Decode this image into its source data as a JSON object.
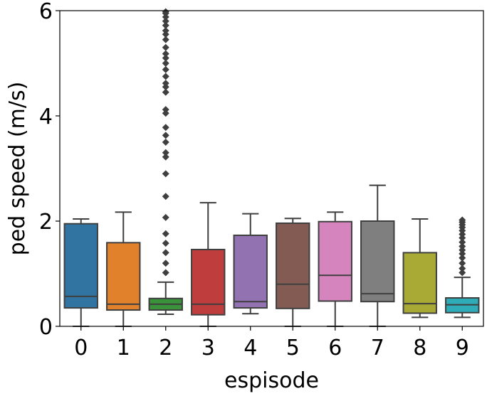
{
  "chart_data": {
    "type": "box",
    "title": "",
    "xlabel": "espisode",
    "ylabel": "ped speed (m/s)",
    "ylim": [
      0,
      6
    ],
    "yticks": [
      0,
      2,
      4,
      6
    ],
    "grid": false,
    "categories": [
      "0",
      "1",
      "2",
      "3",
      "4",
      "5",
      "6",
      "7",
      "8",
      "9"
    ],
    "boxes": [
      {
        "category": "0",
        "color": "#3274a1",
        "whisker_low": 0.0,
        "q1": 0.35,
        "median": 0.57,
        "q3": 1.95,
        "whisker_high": 2.04,
        "outliers": []
      },
      {
        "category": "1",
        "color": "#e1812c",
        "whisker_low": 0.0,
        "q1": 0.31,
        "median": 0.42,
        "q3": 1.59,
        "whisker_high": 2.17,
        "outliers": []
      },
      {
        "category": "2",
        "color": "#3a923a",
        "whisker_low": 0.23,
        "q1": 0.31,
        "median": 0.42,
        "q3": 0.53,
        "whisker_high": 0.84,
        "outliers": [
          1.02,
          1.2,
          1.4,
          1.58,
          1.76,
          2.07,
          2.47,
          2.9,
          3.22,
          3.3,
          3.5,
          3.63,
          3.78,
          4.05,
          4.12,
          4.45,
          4.55,
          4.62,
          4.75,
          4.88,
          5.0,
          5.1,
          5.18,
          5.3,
          5.45,
          5.55,
          5.62,
          5.72,
          5.8,
          5.88,
          5.95,
          5.98
        ]
      },
      {
        "category": "3",
        "color": "#c03d3e",
        "whisker_low": 0.0,
        "q1": 0.22,
        "median": 0.42,
        "q3": 1.46,
        "whisker_high": 2.35,
        "outliers": []
      },
      {
        "category": "4",
        "color": "#9372b2",
        "whisker_low": 0.24,
        "q1": 0.35,
        "median": 0.47,
        "q3": 1.73,
        "whisker_high": 2.14,
        "outliers": []
      },
      {
        "category": "5",
        "color": "#845b53",
        "whisker_low": 0.0,
        "q1": 0.34,
        "median": 0.8,
        "q3": 1.96,
        "whisker_high": 2.05,
        "outliers": []
      },
      {
        "category": "6",
        "color": "#d684bd",
        "whisker_low": 0.0,
        "q1": 0.48,
        "median": 0.97,
        "q3": 1.99,
        "whisker_high": 2.17,
        "outliers": []
      },
      {
        "category": "7",
        "color": "#7f7f7f",
        "whisker_low": 0.0,
        "q1": 0.47,
        "median": 0.62,
        "q3": 2.0,
        "whisker_high": 2.68,
        "outliers": []
      },
      {
        "category": "8",
        "color": "#a9aa35",
        "whisker_low": 0.17,
        "q1": 0.25,
        "median": 0.43,
        "q3": 1.4,
        "whisker_high": 2.04,
        "outliers": []
      },
      {
        "category": "9",
        "color": "#2eadb8",
        "whisker_low": 0.17,
        "q1": 0.26,
        "median": 0.41,
        "q3": 0.54,
        "whisker_high": 0.93,
        "outliers": [
          1.02,
          1.1,
          1.2,
          1.3,
          1.38,
          1.45,
          1.52,
          1.6,
          1.68,
          1.75,
          1.82,
          1.88,
          1.93,
          1.98,
          2.02
        ]
      }
    ]
  }
}
